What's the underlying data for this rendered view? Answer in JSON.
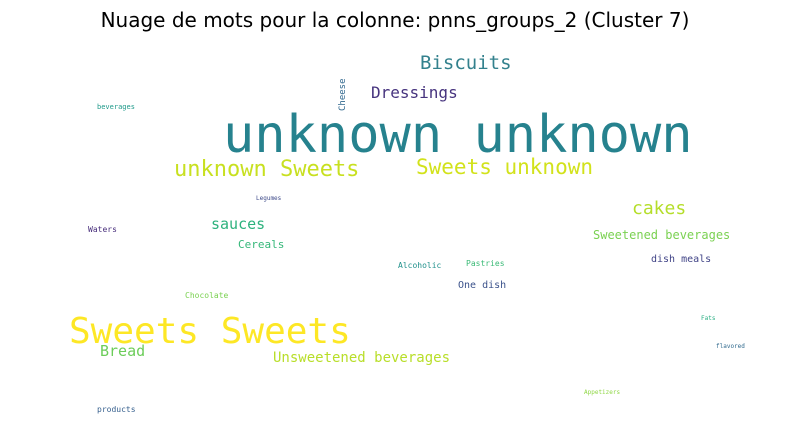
{
  "title": "Nuage de mots pour la colonne: pnns_groups_2 (Cluster 7)",
  "words": [
    {
      "text": "unknown unknown",
      "color": "#26828e"
    },
    {
      "text": "Sweets Sweets",
      "color": "#fde725"
    },
    {
      "text": "unknown Sweets",
      "color": "#c8e020"
    },
    {
      "text": "Sweets unknown",
      "color": "#d2e21b"
    },
    {
      "text": "Biscuits",
      "color": "#33818d"
    },
    {
      "text": "Dressings",
      "color": "#46337e"
    },
    {
      "text": "cakes",
      "color": "#b5de2b"
    },
    {
      "text": "sauces",
      "color": "#2db27d"
    },
    {
      "text": "Sweetened beverages",
      "color": "#7ad151"
    },
    {
      "text": "Unsweetened beverages",
      "color": "#b8de29"
    },
    {
      "text": "Bread",
      "color": "#6ccd5a"
    },
    {
      "text": "Cereals",
      "color": "#35b779"
    },
    {
      "text": "dish meals",
      "color": "#414487"
    },
    {
      "text": "One dish",
      "color": "#3b528b"
    },
    {
      "text": "Cheese",
      "color": "#31688e"
    },
    {
      "text": "Alcoholic",
      "color": "#21918c"
    },
    {
      "text": "Pastries",
      "color": "#3aba76"
    },
    {
      "text": "Chocolate",
      "color": "#7ad151"
    },
    {
      "text": "Waters",
      "color": "#472d7b"
    },
    {
      "text": "beverages",
      "color": "#1f9a8a"
    },
    {
      "text": "Legumes",
      "color": "#3e4a89"
    },
    {
      "text": "products",
      "color": "#355f8d"
    },
    {
      "text": "Fats",
      "color": "#27ad81"
    },
    {
      "text": "flavored",
      "color": "#306a8e"
    },
    {
      "text": "Appetizers",
      "color": "#8fd744"
    }
  ]
}
